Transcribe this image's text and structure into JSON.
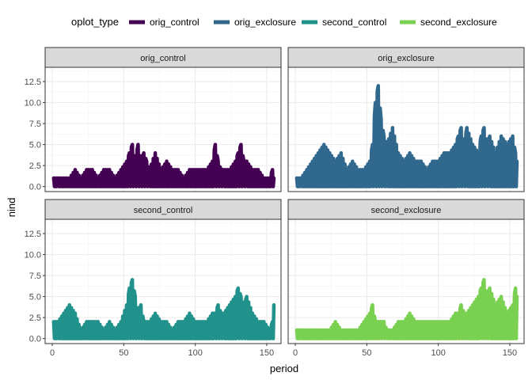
{
  "chart_data": {
    "type": "line",
    "facet_layout": "2x2",
    "xlabel": "period",
    "ylabel": "nind",
    "xlim": [
      -5,
      160
    ],
    "ylim": [
      -0.6,
      14.2
    ],
    "x_ticks": [
      0,
      50,
      100,
      150
    ],
    "y_ticks": [
      0.0,
      2.5,
      5.0,
      7.5,
      10.0,
      12.5
    ],
    "y_tick_labels": [
      "0.0",
      "2.5",
      "5.0",
      "7.5",
      "10.0",
      "12.5"
    ],
    "grid": true,
    "legend": {
      "title": "oplot_type",
      "position": "top",
      "entries": [
        {
          "name": "orig_control",
          "color": "#440154"
        },
        {
          "name": "orig_exclosure",
          "color": "#31688E"
        },
        {
          "name": "second_control",
          "color": "#21918C"
        },
        {
          "name": "second_exclosure",
          "color": "#7AD151"
        }
      ]
    },
    "panels": [
      {
        "name": "orig_control",
        "color": "#440154",
        "x": [
          1,
          4,
          8,
          12,
          16,
          20,
          24,
          28,
          32,
          36,
          40,
          44,
          48,
          52,
          54,
          56,
          58,
          60,
          62,
          64,
          66,
          68,
          72,
          76,
          80,
          84,
          88,
          92,
          96,
          100,
          104,
          108,
          112,
          114,
          116,
          118,
          120,
          124,
          128,
          130,
          132,
          134,
          136,
          140,
          144,
          148,
          152,
          154,
          155
        ],
        "min": [
          0,
          0,
          0,
          0,
          0,
          0,
          0,
          0,
          0,
          0,
          0,
          0,
          0,
          0,
          0,
          0,
          0,
          0,
          0,
          0,
          0,
          0,
          0,
          0,
          0,
          0,
          0,
          0,
          0,
          0,
          0,
          0,
          0,
          0,
          0,
          0,
          0,
          0,
          0,
          0,
          0,
          0,
          0,
          0,
          0,
          0,
          0,
          0,
          0
        ],
        "max": [
          1,
          1,
          1,
          1,
          2,
          1,
          2,
          2,
          1,
          2,
          2,
          1,
          2,
          3,
          4,
          5,
          3,
          5,
          3,
          4,
          3,
          2,
          4,
          2,
          3,
          2,
          2,
          1,
          2,
          2,
          2,
          2,
          3,
          5,
          3,
          2,
          2,
          2,
          3,
          4,
          5,
          3,
          3,
          2,
          2,
          1,
          1,
          2,
          1
        ]
      },
      {
        "name": "orig_exclosure",
        "color": "#31688E",
        "x": [
          1,
          4,
          8,
          12,
          16,
          20,
          24,
          28,
          32,
          36,
          40,
          44,
          48,
          52,
          54,
          56,
          58,
          60,
          62,
          64,
          68,
          72,
          76,
          80,
          84,
          88,
          92,
          96,
          100,
          104,
          108,
          112,
          114,
          116,
          118,
          120,
          124,
          128,
          130,
          132,
          134,
          136,
          140,
          144,
          148,
          152,
          154,
          155
        ],
        "min": [
          0,
          0,
          0,
          0,
          0,
          0,
          0,
          0,
          0,
          0,
          0,
          0,
          0,
          0,
          0,
          0,
          0,
          0,
          0,
          0,
          0,
          0,
          0,
          0,
          0,
          0,
          0,
          0,
          0,
          0,
          0,
          0,
          0,
          0,
          0,
          0,
          0,
          0,
          0,
          0,
          0,
          0,
          0,
          0,
          0,
          0,
          0,
          0
        ],
        "max": [
          1,
          1,
          2,
          3,
          4,
          5,
          4,
          3,
          4,
          2,
          3,
          2,
          2,
          3,
          5,
          10,
          12,
          8,
          6,
          5,
          7,
          4,
          3,
          4,
          3,
          3,
          2,
          3,
          3,
          4,
          4,
          5,
          6,
          7,
          5,
          7,
          5,
          4,
          6,
          7,
          5,
          6,
          4,
          6,
          5,
          6,
          4,
          3
        ]
      },
      {
        "name": "second_control",
        "color": "#21918C",
        "x": [
          1,
          4,
          8,
          12,
          16,
          20,
          24,
          28,
          32,
          36,
          40,
          44,
          48,
          52,
          54,
          56,
          58,
          60,
          62,
          64,
          68,
          72,
          76,
          80,
          84,
          88,
          92,
          96,
          100,
          104,
          108,
          112,
          114,
          116,
          118,
          120,
          124,
          128,
          130,
          132,
          134,
          136,
          140,
          144,
          148,
          152,
          154,
          155
        ],
        "min": [
          0,
          0,
          0,
          0,
          0,
          0,
          0,
          0,
          0,
          0,
          0,
          0,
          0,
          0,
          0,
          0,
          0,
          0,
          0,
          0,
          0,
          0,
          0,
          0,
          0,
          0,
          0,
          0,
          0,
          0,
          0,
          0,
          0,
          0,
          0,
          0,
          0,
          0,
          0,
          0,
          0,
          0,
          0,
          0,
          0,
          0,
          0,
          0
        ],
        "max": [
          2,
          2,
          3,
          4,
          3,
          1,
          2,
          2,
          2,
          1,
          2,
          1,
          2,
          4,
          6,
          7,
          5,
          3,
          4,
          2,
          2,
          3,
          2,
          2,
          1,
          2,
          2,
          3,
          2,
          2,
          2,
          3,
          3,
          4,
          3,
          3,
          4,
          5,
          6,
          5,
          4,
          5,
          3,
          2,
          2,
          1,
          2,
          4
        ]
      },
      {
        "name": "second_exclosure",
        "color": "#7AD151",
        "x": [
          1,
          4,
          8,
          12,
          16,
          20,
          24,
          28,
          32,
          36,
          40,
          44,
          48,
          52,
          54,
          56,
          58,
          60,
          62,
          64,
          68,
          72,
          76,
          80,
          84,
          88,
          92,
          96,
          100,
          104,
          108,
          112,
          114,
          116,
          118,
          120,
          124,
          128,
          130,
          132,
          134,
          136,
          140,
          144,
          148,
          152,
          154,
          155
        ],
        "min": [
          0,
          0,
          0,
          0,
          0,
          0,
          0,
          0,
          0,
          0,
          0,
          0,
          0,
          0,
          0,
          0,
          0,
          0,
          0,
          0,
          0,
          0,
          0,
          0,
          0,
          0,
          0,
          0,
          0,
          0,
          0,
          0,
          0,
          0,
          0,
          0,
          0,
          0,
          0,
          0,
          0,
          0,
          0,
          0,
          0,
          0,
          0,
          0
        ],
        "max": [
          1,
          1,
          1,
          1,
          1,
          1,
          1,
          2,
          1,
          1,
          1,
          1,
          2,
          3,
          4,
          2,
          2,
          2,
          2,
          1,
          1,
          2,
          2,
          3,
          2,
          2,
          2,
          2,
          2,
          2,
          2,
          3,
          3,
          4,
          3,
          3,
          4,
          5,
          6,
          7,
          5,
          6,
          4,
          5,
          3,
          4,
          6,
          5
        ]
      }
    ]
  }
}
